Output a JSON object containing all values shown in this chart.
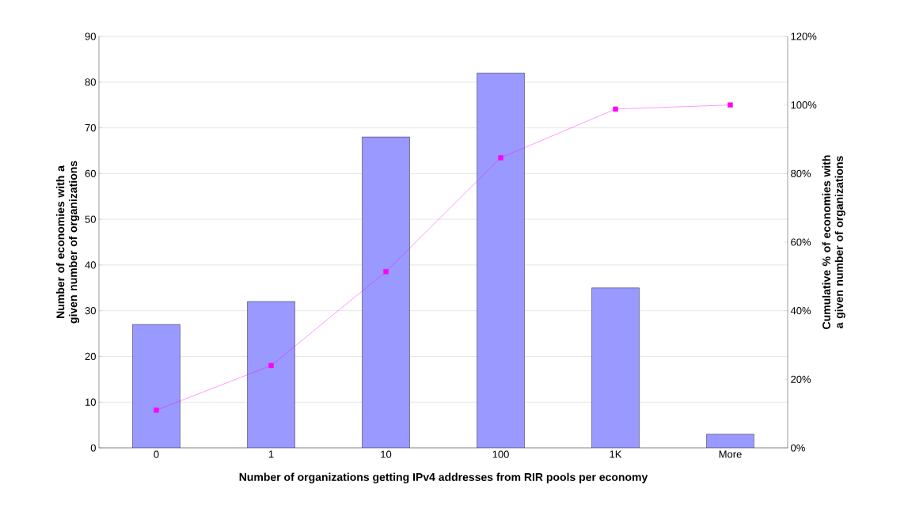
{
  "chart_data": {
    "type": "bar",
    "xlabel": "Number of organizations getting IPv4 addresses from RIR pools per economy",
    "ylabel": "Number of economies with a given number of organizations",
    "y2label": "Cumulative % of economies with a given number of organizations",
    "categories": [
      "0",
      "1",
      "10",
      "100",
      "1K",
      "More"
    ],
    "series": [
      {
        "color": "#9999ff",
        "values": [
          27,
          32,
          68,
          82,
          35,
          3
        ]
      },
      {
        "type": "line",
        "axis": "y2",
        "color": "#ff00ff",
        "marker": "square",
        "values": [
          11,
          24,
          51.4,
          84.6,
          98.8,
          100
        ]
      }
    ],
    "ylim": [
      0,
      90
    ],
    "yticks": [
      0,
      10,
      20,
      30,
      40,
      50,
      60,
      70,
      80,
      90
    ],
    "y2lim": [
      0,
      120
    ],
    "y2ticks": [
      {
        "value": 0,
        "label": "0%"
      },
      {
        "value": 20,
        "label": "20%"
      },
      {
        "value": 40,
        "label": "40%"
      },
      {
        "value": 60,
        "label": "60%"
      },
      {
        "value": 80,
        "label": "80%"
      },
      {
        "value": 100,
        "label": "100%"
      },
      {
        "value": 120,
        "label": "120%"
      }
    ],
    "grid": "y"
  }
}
